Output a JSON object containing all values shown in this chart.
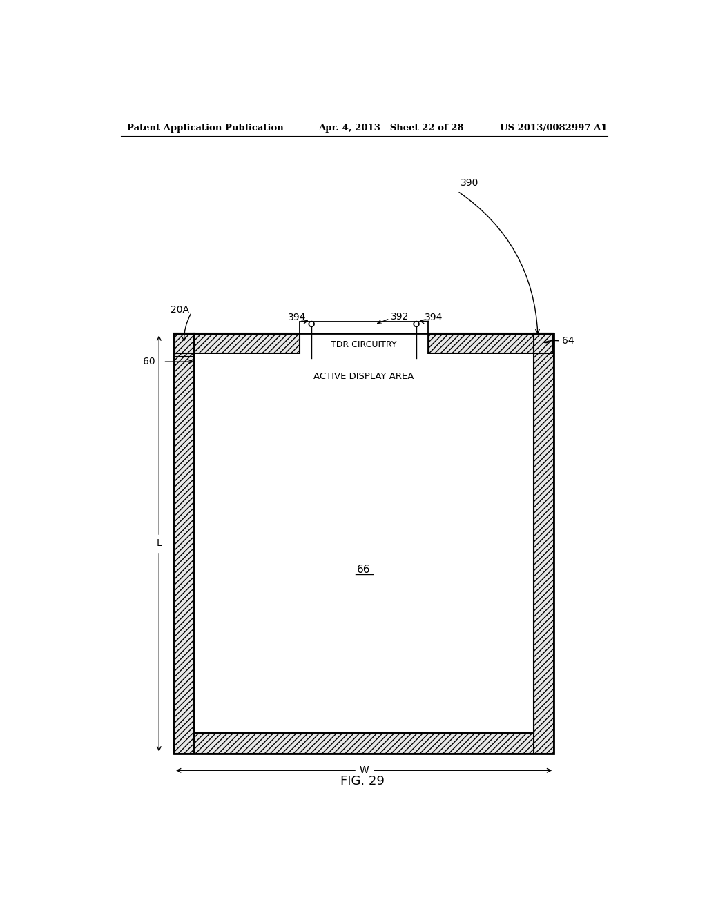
{
  "header_left": "Patent Application Publication",
  "header_mid": "Apr. 4, 2013   Sheet 22 of 28",
  "header_right": "US 2013/0082997 A1",
  "fig_label": "FIG. 29",
  "bg_color": "#ffffff",
  "line_color": "#000000"
}
